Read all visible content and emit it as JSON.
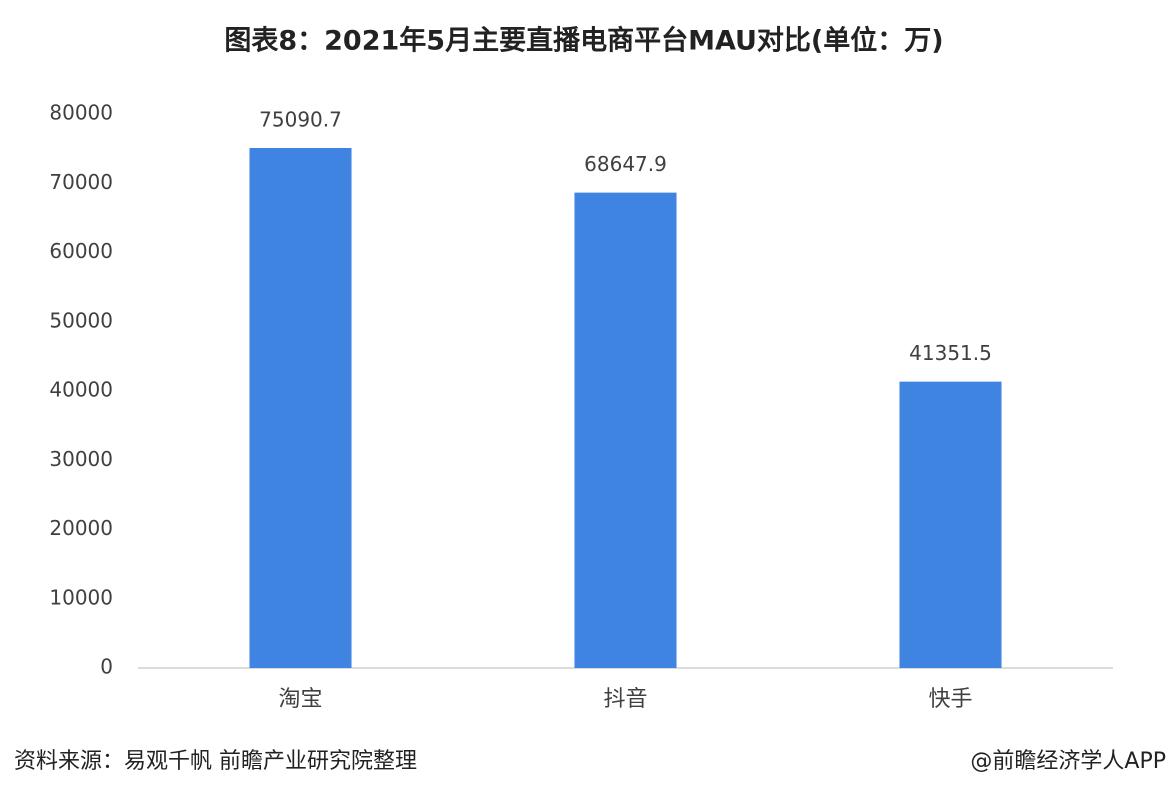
{
  "chart_data": {
    "type": "bar",
    "title": "图表8：2021年5月主要直播电商平台MAU对比(单位：万)",
    "categories": [
      "淘宝",
      "抖音",
      "快手"
    ],
    "values": [
      75090.7,
      68647.9,
      41351.5
    ],
    "color": "#3f84e0",
    "ylim": [
      0,
      80000
    ],
    "yticks": [
      0,
      10000,
      20000,
      30000,
      40000,
      50000,
      60000,
      70000,
      80000
    ],
    "grid": false,
    "source": "资料来源：易观千帆 前瞻产业研究院整理",
    "credit": "@前瞻经济学人APP"
  }
}
